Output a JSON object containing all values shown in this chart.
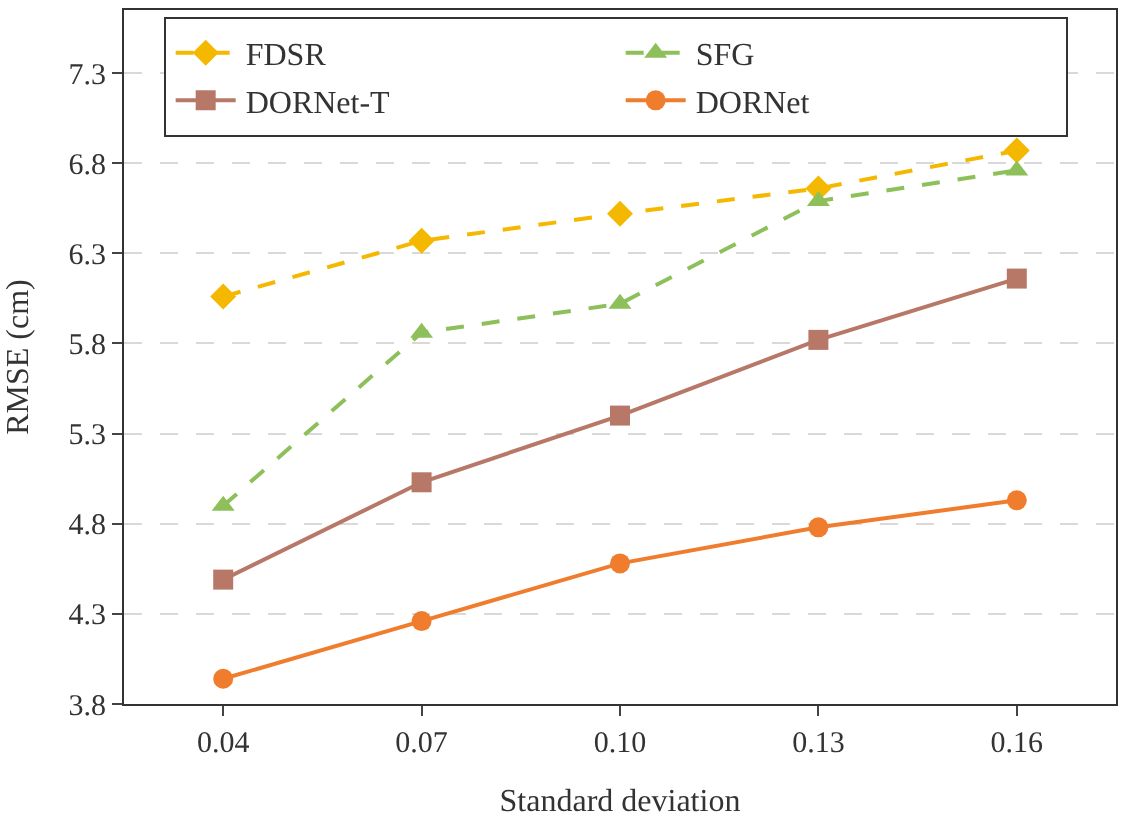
{
  "chart_data": {
    "type": "line",
    "xlabel": "Standard deviation",
    "ylabel": "RMSE (cm)",
    "categories": [
      "0.04",
      "0.07",
      "0.10",
      "0.13",
      "0.16"
    ],
    "ylim": [
      3.8,
      7.65
    ],
    "yticks": [
      3.8,
      4.3,
      4.8,
      5.3,
      5.8,
      6.3,
      6.8,
      7.3
    ],
    "grid": "y",
    "legend": "top left",
    "series": [
      {
        "name": "FDSR",
        "color": "#f5b800",
        "marker": "diamond",
        "line_style": "dashed",
        "values": [
          6.06,
          6.37,
          6.52,
          6.66,
          6.87
        ]
      },
      {
        "name": "SFG",
        "color": "#8dc05a",
        "marker": "triangle",
        "line_style": "dashed",
        "values": [
          4.9,
          5.86,
          6.02,
          6.59,
          6.76
        ]
      },
      {
        "name": "DORNet-T",
        "color": "#b87868",
        "marker": "square",
        "line_style": "solid",
        "values": [
          4.49,
          5.03,
          5.4,
          5.82,
          6.16
        ]
      },
      {
        "name": "DORNet",
        "color": "#f07d2e",
        "marker": "circle",
        "line_style": "solid",
        "values": [
          3.94,
          4.26,
          4.58,
          4.78,
          4.93
        ]
      }
    ]
  }
}
